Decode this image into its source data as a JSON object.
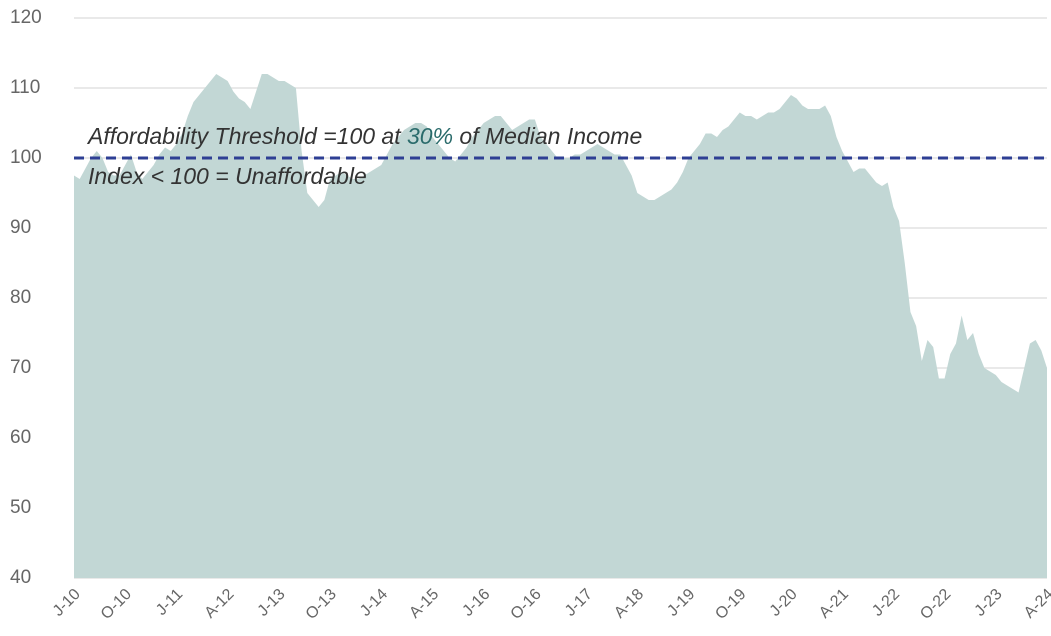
{
  "chart_data": {
    "type": "area",
    "color": "#c2d7d5",
    "categories": [
      "J-10",
      null,
      null,
      null,
      null,
      null,
      null,
      null,
      null,
      "O-10",
      null,
      null,
      null,
      null,
      null,
      null,
      null,
      null,
      "J-11",
      null,
      null,
      null,
      null,
      null,
      null,
      null,
      null,
      "A-12",
      null,
      null,
      null,
      null,
      null,
      null,
      null,
      null,
      "J-13",
      null,
      null,
      null,
      null,
      null,
      null,
      null,
      null,
      "O-13",
      null,
      null,
      null,
      null,
      null,
      null,
      null,
      null,
      "J-14",
      null,
      null,
      null,
      null,
      null,
      null,
      null,
      null,
      "A-15",
      null,
      null,
      null,
      null,
      null,
      null,
      null,
      null,
      "J-16",
      null,
      null,
      null,
      null,
      null,
      null,
      null,
      null,
      "O-16",
      null,
      null,
      null,
      null,
      null,
      null,
      null,
      null,
      "J-17",
      null,
      null,
      null,
      null,
      null,
      null,
      null,
      null,
      "A-18",
      null,
      null,
      null,
      null,
      null,
      null,
      null,
      null,
      "J-19",
      null,
      null,
      null,
      null,
      null,
      null,
      null,
      null,
      "O-19",
      null,
      null,
      null,
      null,
      null,
      null,
      null,
      null,
      "J-20",
      null,
      null,
      null,
      null,
      null,
      null,
      null,
      null,
      "A-21",
      null,
      null,
      null,
      null,
      null,
      null,
      null,
      null,
      "J-22",
      null,
      null,
      null,
      null,
      null,
      null,
      null,
      null,
      "O-22",
      null,
      null,
      null,
      null,
      null,
      null,
      null,
      null,
      "J-23",
      null,
      null,
      null,
      null,
      null,
      null,
      null,
      null,
      "A-24"
    ],
    "values": [
      97.5,
      97,
      98.5,
      100,
      101,
      100,
      98,
      97.5,
      97.5,
      99,
      100.5,
      98,
      97,
      98,
      99,
      100.5,
      101.5,
      101,
      102,
      103.5,
      106,
      108,
      109,
      110,
      111,
      112,
      111.5,
      111,
      109.5,
      108.5,
      108,
      107,
      109.5,
      112,
      112,
      111.5,
      111,
      111,
      110.5,
      110,
      101,
      95,
      94,
      93,
      94,
      97,
      97.5,
      98,
      97.5,
      97,
      97,
      97.5,
      98,
      98.5,
      99,
      100.5,
      102,
      103,
      104,
      104.5,
      105,
      105,
      104.5,
      103,
      102,
      101,
      100,
      99.5,
      100.5,
      101.5,
      103,
      104,
      105,
      105.5,
      106,
      106,
      105,
      104,
      104.5,
      105,
      105.5,
      105.5,
      103,
      102,
      101,
      100,
      100,
      100,
      100.5,
      100.5,
      101,
      101.5,
      102,
      101.5,
      101,
      100.5,
      100.5,
      99,
      97.5,
      95,
      94.5,
      94,
      94,
      94.5,
      95,
      95.5,
      96.5,
      98,
      100,
      101,
      102,
      103.5,
      103.5,
      103,
      104,
      104.5,
      105.5,
      106.5,
      106,
      106,
      105.5,
      106,
      106.5,
      106.5,
      107,
      108,
      109,
      108.5,
      107.5,
      107,
      107,
      107,
      107.5,
      106,
      103,
      101,
      99.5,
      98,
      98.5,
      98.5,
      97.5,
      96.5,
      96,
      96.5,
      93,
      91,
      85,
      78,
      76,
      71,
      74,
      73,
      68.5,
      68.5,
      72,
      73.5,
      77.5,
      74,
      75,
      72,
      70,
      69.5,
      69,
      68,
      67.5,
      67,
      66.5,
      70,
      73.5,
      74,
      72.5,
      70
    ],
    "ylim": [
      40,
      120
    ],
    "yticks": [
      40,
      50,
      60,
      70,
      80,
      90,
      100,
      110,
      120
    ],
    "grid": true,
    "threshold": {
      "value": 100,
      "color": "#2e3f94"
    },
    "annotations": [
      [
        "Affordability Threshold =100 at ",
        "30%",
        " of Median Income"
      ],
      "Index < 100 = Unaffordable"
    ]
  }
}
